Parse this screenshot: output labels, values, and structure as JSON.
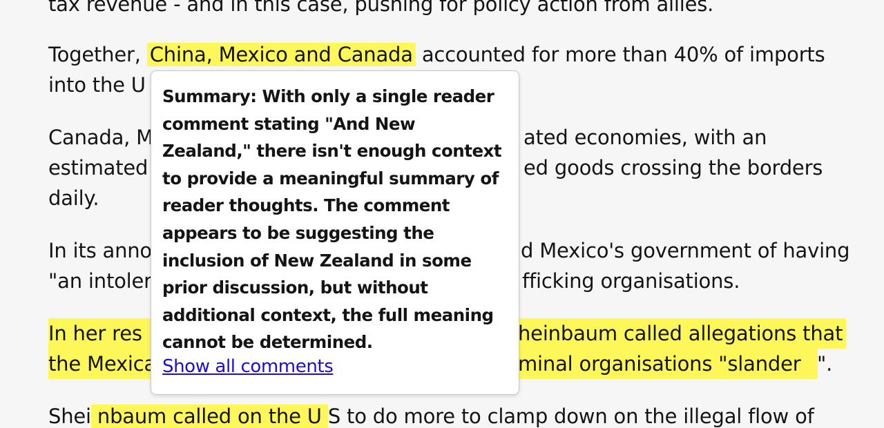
{
  "article": {
    "p0_line1": "tax revenue - and in this case, pushing for policy action from allies.",
    "p1_line1_a": "Together, ",
    "p1_line1_hl": "China, Mexico and Canada",
    "p1_line1_b": " accounted for more than 40% of imports",
    "p1_line2": "into the U",
    "p2_line1_a": "Canada, M",
    "p2_line1_b": "ated economies, with an",
    "p2_line2_a": "estimated",
    "p2_line2_b": "ed goods crossing the borders",
    "p2_line3": "daily.",
    "p3_line1_a": "In its anno",
    "p3_line1_b": "d Mexico's government of having",
    "p3_line2_a": "\"an intoler",
    "p3_line2_b": "fficking organisations.",
    "p4_line1_a": " In her res",
    "p4_line1_b": "heinbaum called allegations that",
    "p4_line2_a": "the Mexica",
    "p4_line2_b": "minal organisations \"slander ",
    "p4_line2_c": "\".",
    "p5_line1_a": "Shei",
    "p5_line1_hl": " nbaum called on the U ",
    "p5_line1_b": "S to do more to clamp down on the illegal flow of"
  },
  "popup": {
    "summary": "Summary: With only a single reader comment stating \"And New Zealand,\" there isn't enough context to provide a meaningful summary of reader thoughts. The comment appears to be suggesting the inclusion of New Zealand in some prior discussion, but without additional context, the full meaning cannot be determined.",
    "link_label": "Show all comments"
  },
  "colors": {
    "highlight": "#fdf75a",
    "link": "#1a0dd8",
    "background": "#f6f6f6"
  }
}
